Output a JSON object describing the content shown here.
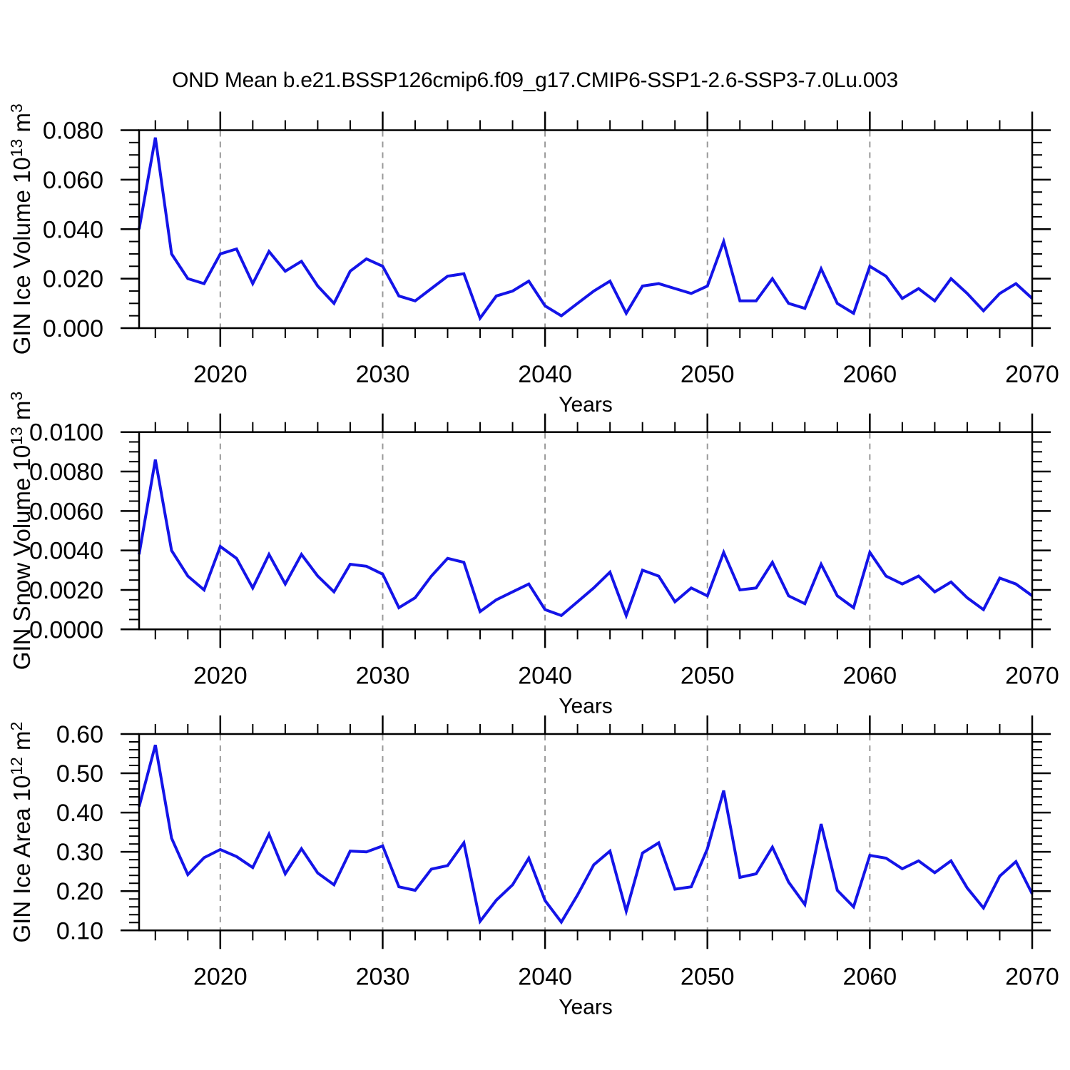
{
  "title": "OND Mean b.e21.BSSP126cmip6.f09_g17.CMIP6-SSP1-2.6-SSP3-7.0Lu.003",
  "colors": {
    "line": "#1414e8",
    "grid": "#999999",
    "frame": "#000000",
    "text": "#000000",
    "background": "#ffffff"
  },
  "chart_data": {
    "type": "line",
    "title": "OND Mean b.e21.BSSP126cmip6.f09_g17.CMIP6-SSP1-2.6-SSP3-7.0Lu.003",
    "legend": "none",
    "grid": "vertical dashed gridlines at decades",
    "x": {
      "label": "Years",
      "start": 2015,
      "end": 2070,
      "step": 1,
      "labeled_ticks": [
        2020,
        2030,
        2040,
        2050,
        2060,
        2070
      ],
      "minor_tick_step": 2,
      "dashed_gridlines": [
        2020,
        2030,
        2040,
        2050,
        2060
      ]
    },
    "panels": [
      {
        "id": "ice-volume",
        "ylabel": "GIN Ice Volume 10^13 m^3",
        "ylabel_parts": [
          [
            "GIN Ice Volume 10",
            0
          ],
          [
            "13",
            1
          ],
          [
            " m",
            0
          ],
          [
            "3",
            1
          ]
        ],
        "ylim": [
          0,
          0.08
        ],
        "ytick_step": 0.02,
        "ytick_minor_step": 0.005,
        "ytick_decimals": 3,
        "values": [
          0.04,
          0.077,
          0.03,
          0.02,
          0.018,
          0.03,
          0.032,
          0.018,
          0.031,
          0.023,
          0.027,
          0.017,
          0.01,
          0.023,
          0.028,
          0.025,
          0.013,
          0.011,
          0.016,
          0.021,
          0.022,
          0.004,
          0.013,
          0.015,
          0.019,
          0.009,
          0.005,
          0.01,
          0.015,
          0.019,
          0.006,
          0.017,
          0.018,
          0.016,
          0.014,
          0.017,
          0.035,
          0.011,
          0.011,
          0.02,
          0.01,
          0.008,
          0.024,
          0.01,
          0.006,
          0.025,
          0.021,
          0.012,
          0.016,
          0.011,
          0.02,
          0.014,
          0.007,
          0.014,
          0.018,
          0.012
        ]
      },
      {
        "id": "snow-volume",
        "ylabel": "GIN Snow Volume 10^13 m^3",
        "ylabel_parts": [
          [
            "GIN Snow Volume 10",
            0
          ],
          [
            "13",
            1
          ],
          [
            " m",
            0
          ],
          [
            "3",
            1
          ]
        ],
        "ylim": [
          0,
          0.01
        ],
        "ytick_step": 0.002,
        "ytick_minor_step": 0.0005,
        "ytick_decimals": 4,
        "values": [
          0.0038,
          0.0086,
          0.004,
          0.0027,
          0.002,
          0.0042,
          0.0036,
          0.0021,
          0.0038,
          0.0023,
          0.0038,
          0.0027,
          0.0019,
          0.0033,
          0.0032,
          0.0028,
          0.0011,
          0.0016,
          0.0027,
          0.0036,
          0.0034,
          0.0009,
          0.0015,
          0.0019,
          0.0023,
          0.001,
          0.0007,
          0.0014,
          0.0021,
          0.0029,
          0.0007,
          0.003,
          0.0027,
          0.0014,
          0.0021,
          0.0017,
          0.0039,
          0.002,
          0.0021,
          0.0034,
          0.0017,
          0.0013,
          0.0033,
          0.0017,
          0.0011,
          0.0039,
          0.0027,
          0.0023,
          0.0027,
          0.0019,
          0.0024,
          0.0016,
          0.001,
          0.0026,
          0.0023,
          0.0017
        ]
      },
      {
        "id": "ice-area",
        "ylabel": "GIN Ice Area 10^12 m^2",
        "ylabel_parts": [
          [
            "GIN Ice Area 10",
            0
          ],
          [
            "12",
            1
          ],
          [
            " m",
            0
          ],
          [
            "2",
            1
          ]
        ],
        "ylim": [
          0.1,
          0.6
        ],
        "ytick_step": 0.1,
        "ytick_minor_step": 0.02,
        "ytick_decimals": 2,
        "values": [
          0.415,
          0.572,
          0.335,
          0.242,
          0.285,
          0.306,
          0.288,
          0.26,
          0.345,
          0.244,
          0.308,
          0.246,
          0.216,
          0.302,
          0.3,
          0.315,
          0.211,
          0.202,
          0.256,
          0.265,
          0.323,
          0.123,
          0.177,
          0.216,
          0.284,
          0.176,
          0.121,
          0.19,
          0.267,
          0.302,
          0.149,
          0.297,
          0.323,
          0.205,
          0.211,
          0.308,
          0.456,
          0.235,
          0.244,
          0.312,
          0.223,
          0.166,
          0.371,
          0.202,
          0.16,
          0.291,
          0.284,
          0.257,
          0.277,
          0.247,
          0.277,
          0.208,
          0.157,
          0.238,
          0.275,
          0.193
        ]
      }
    ]
  }
}
